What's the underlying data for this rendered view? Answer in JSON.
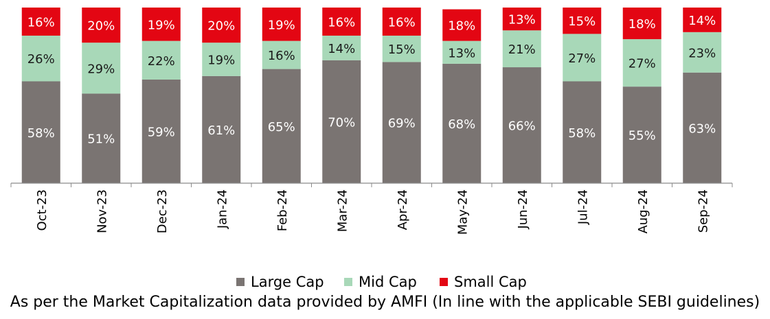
{
  "chart_data": {
    "type": "bar",
    "stacked": true,
    "categories": [
      "Oct-23",
      "Nov-23",
      "Dec-23",
      "Jan-24",
      "Feb-24",
      "Mar-24",
      "Apr-24",
      "May-24",
      "Jun-24",
      "Jul-24",
      "Aug-24",
      "Sep-24"
    ],
    "series": [
      {
        "name": "Large Cap",
        "color": "#7a7472",
        "values": [
          58,
          51,
          59,
          61,
          65,
          70,
          69,
          68,
          66,
          58,
          55,
          63
        ],
        "labels": [
          "58%",
          "51%",
          "59%",
          "61%",
          "65%",
          "70%",
          "69%",
          "68%",
          "66%",
          "58%",
          "55%",
          "63%"
        ]
      },
      {
        "name": "Mid Cap",
        "color": "#a8d8b8",
        "values": [
          26,
          29,
          22,
          19,
          16,
          14,
          15,
          13,
          21,
          27,
          27,
          23
        ],
        "labels": [
          "26%",
          "29%",
          "22%",
          "19%",
          "16%",
          "14%",
          "15%",
          "13%",
          "21%",
          "27%",
          "27%",
          "23%"
        ]
      },
      {
        "name": "Small Cap",
        "color": "#e30613",
        "values": [
          16,
          20,
          19,
          20,
          19,
          16,
          16,
          18,
          13,
          15,
          18,
          14
        ],
        "labels": [
          "16%",
          "20%",
          "19%",
          "20%",
          "19%",
          "16%",
          "16%",
          "18%",
          "13%",
          "15%",
          "18%",
          "14%"
        ]
      }
    ],
    "ylim": [
      0,
      100
    ],
    "grid": false,
    "legend_position": "bottom",
    "note": "As per the Market Capitalization data provided by AMFI (In line with the applicable SEBI guidelines)"
  }
}
